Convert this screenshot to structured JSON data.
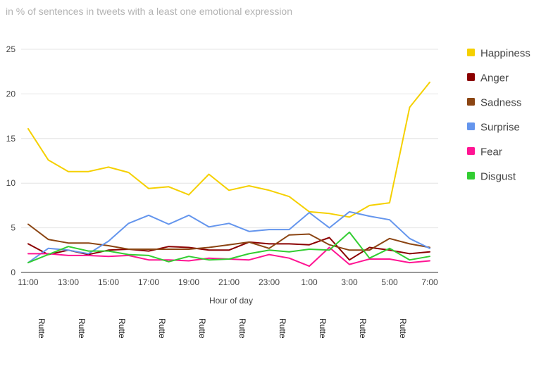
{
  "chart_data": {
    "type": "line",
    "subtitle": "in % of sentences in tweets with a least one emotional expression",
    "xlabel": "Hour of day",
    "ylabel": "",
    "ylim": [
      0,
      25
    ],
    "yticks": [
      0,
      5,
      10,
      15,
      20,
      25
    ],
    "grid": true,
    "legend_position": "right",
    "x": [
      "11:00",
      "12:00",
      "13:00",
      "14:00",
      "15:00",
      "16:00",
      "17:00",
      "18:00",
      "19:00",
      "20:00",
      "21:00",
      "22:00",
      "23:00",
      "0:00",
      "1:00",
      "2:00",
      "3:00",
      "4:00",
      "5:00",
      "6:00",
      "7:00"
    ],
    "xtick_labels": [
      "11:00",
      "13:00",
      "15:00",
      "17:00",
      "19:00",
      "21:00",
      "23:00",
      "1:00",
      "3:00",
      "5:00",
      "7:00"
    ],
    "series": [
      {
        "name": "Happiness",
        "color": "#f5d000",
        "values": [
          16.1,
          12.6,
          11.3,
          11.3,
          11.8,
          11.2,
          9.4,
          9.6,
          8.7,
          11.0,
          9.2,
          9.7,
          9.2,
          8.5,
          6.8,
          6.6,
          6.2,
          7.5,
          7.8,
          18.5,
          21.3
        ]
      },
      {
        "name": "Anger",
        "color": "#8b0000",
        "values": [
          3.2,
          2.0,
          2.5,
          2.0,
          2.5,
          2.6,
          2.4,
          2.9,
          2.8,
          2.5,
          2.5,
          3.4,
          3.2,
          3.2,
          3.1,
          3.9,
          1.4,
          2.8,
          2.5,
          2.1,
          2.3
        ]
      },
      {
        "name": "Sadness",
        "color": "#8b4513",
        "values": [
          5.4,
          3.7,
          3.3,
          3.3,
          3.0,
          2.6,
          2.6,
          2.6,
          2.6,
          2.8,
          3.1,
          3.4,
          2.7,
          4.2,
          4.3,
          3.1,
          2.5,
          2.5,
          3.8,
          3.2,
          2.8
        ]
      },
      {
        "name": "Surprise",
        "color": "#6495ed",
        "values": [
          1.1,
          2.7,
          2.5,
          2.1,
          3.5,
          5.5,
          6.4,
          5.4,
          6.4,
          5.1,
          5.5,
          4.6,
          4.8,
          4.8,
          6.7,
          5.0,
          6.8,
          6.3,
          5.9,
          3.8,
          2.7
        ]
      },
      {
        "name": "Fear",
        "color": "#ff1493",
        "values": [
          2.1,
          2.1,
          1.9,
          1.9,
          1.8,
          1.9,
          1.4,
          1.4,
          1.3,
          1.6,
          1.5,
          1.4,
          2.0,
          1.6,
          0.7,
          2.8,
          0.9,
          1.5,
          1.5,
          1.1,
          1.3
        ]
      },
      {
        "name": "Disgust",
        "color": "#32cd32",
        "values": [
          1.1,
          2.0,
          2.9,
          2.4,
          2.4,
          2.0,
          1.9,
          1.2,
          1.8,
          1.4,
          1.5,
          2.1,
          2.5,
          2.3,
          2.6,
          2.5,
          4.5,
          1.6,
          2.7,
          1.4,
          1.8
        ]
      }
    ],
    "annotations": [
      {
        "label": "Rutte",
        "x": "11:00"
      },
      {
        "label": "Rutte",
        "x": "13:00"
      },
      {
        "label": "Rutte",
        "x": "15:00"
      },
      {
        "label": "Rutte",
        "x": "17:00"
      },
      {
        "label": "Rutte",
        "x": "19:00"
      },
      {
        "label": "Rutte",
        "x": "21:00"
      },
      {
        "label": "Rutte",
        "x": "23:00"
      },
      {
        "label": "Rutte",
        "x": "1:00"
      },
      {
        "label": "Rutte",
        "x": "3:00"
      },
      {
        "label": "Rutte",
        "x": "5:00"
      }
    ]
  }
}
